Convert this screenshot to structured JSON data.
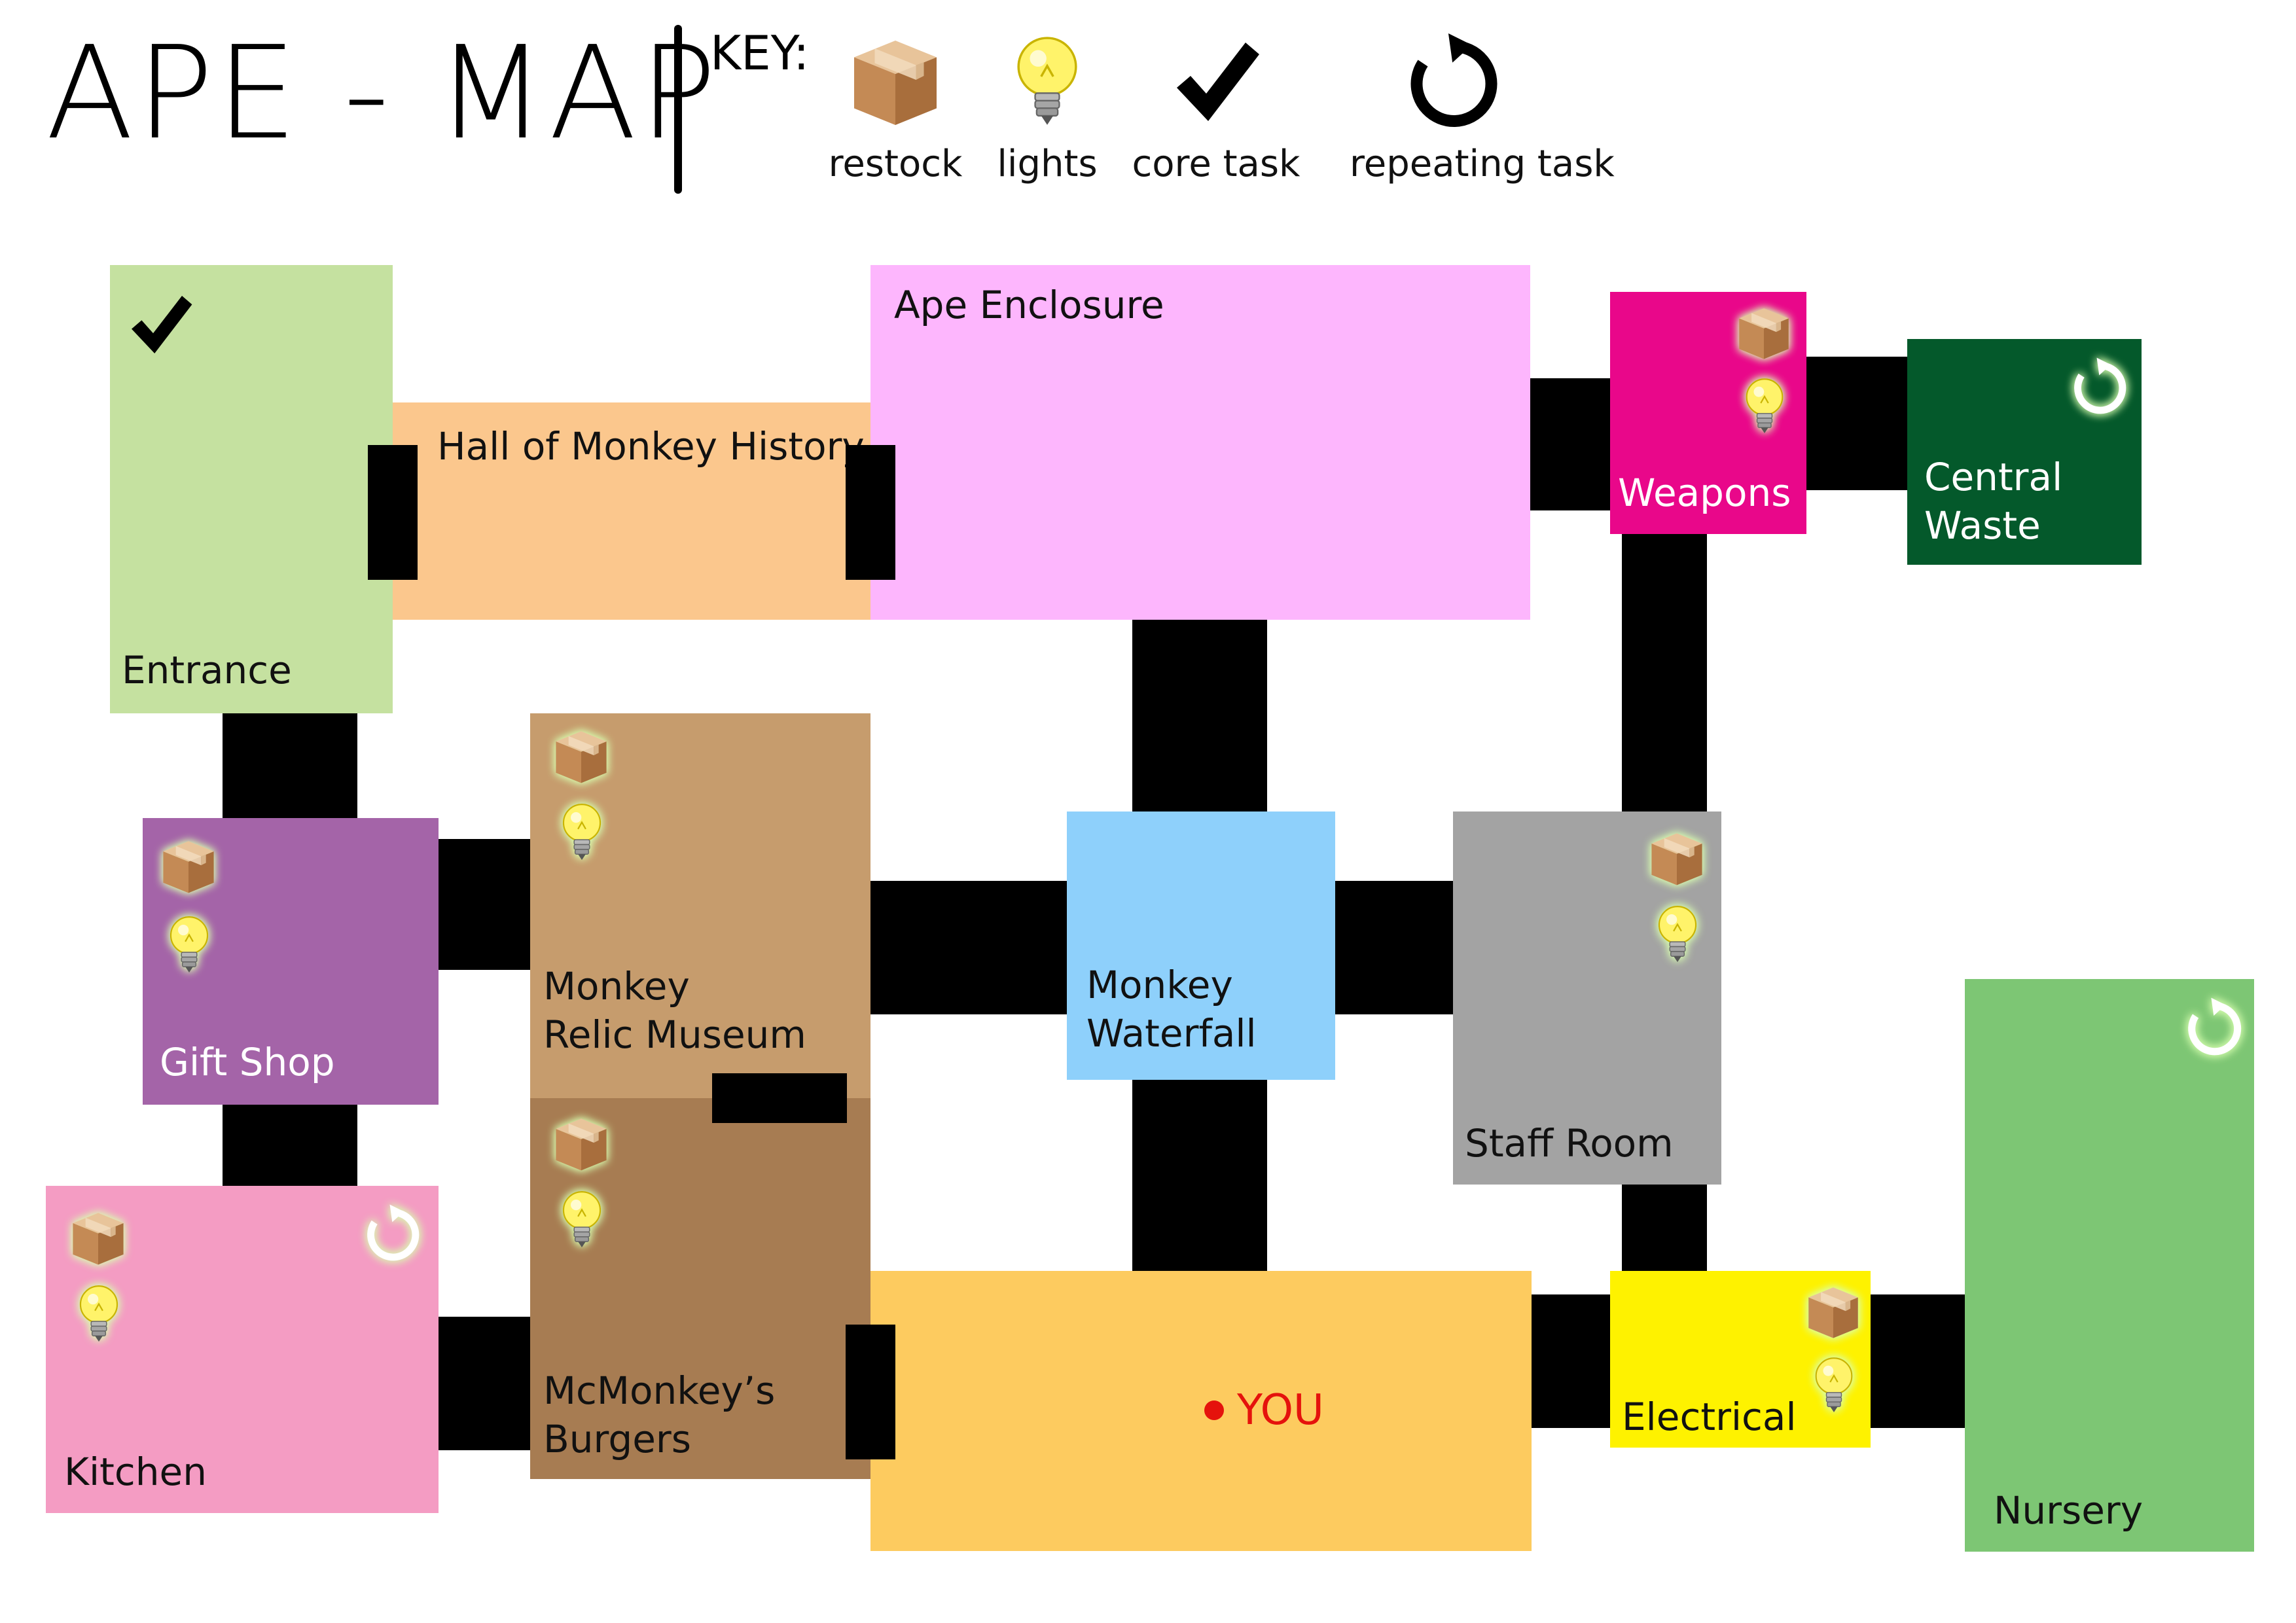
{
  "header": {
    "title": "APE - MAP",
    "key_label": "KEY:"
  },
  "legend": {
    "restock": {
      "label": "restock",
      "icon": "box-icon"
    },
    "lights": {
      "label": "lights",
      "icon": "lightbulb-icon"
    },
    "core": {
      "label": "core task",
      "icon": "checkmark-icon"
    },
    "repeating": {
      "label": "repeating task",
      "icon": "refresh-icon"
    }
  },
  "rooms": {
    "entrance": {
      "label": "Entrance",
      "color": "#c5e1a0",
      "tasks": [
        "core"
      ]
    },
    "hall": {
      "label": "Hall of Monkey History",
      "color": "#fbc78d",
      "tasks": []
    },
    "enclosure": {
      "label": "Ape Enclosure",
      "color": "#fdb6fd",
      "tasks": []
    },
    "weapons": {
      "label": "Weapons",
      "color": "#e9078a",
      "tasks": [
        "restock",
        "lights"
      ]
    },
    "central_waste": {
      "line1": "Central",
      "line2": "Waste",
      "color": "#04592b",
      "tasks": [
        "repeating"
      ]
    },
    "gift_shop": {
      "label": "Gift Shop",
      "color": "#a464a8",
      "tasks": [
        "restock",
        "lights"
      ]
    },
    "relic_museum": {
      "line1": "Monkey",
      "line2": "Relic Museum",
      "color": "#c69c6d",
      "tasks": [
        "restock",
        "lights"
      ]
    },
    "waterfall": {
      "line1": "Monkey",
      "line2": "Waterfall",
      "color": "#8ed0fb",
      "tasks": []
    },
    "staff_room": {
      "label": "Staff Room",
      "color": "#a3a3a3",
      "tasks": [
        "restock",
        "lights"
      ]
    },
    "nursery": {
      "label": "Nursery",
      "color": "#7dc674",
      "tasks": [
        "repeating"
      ]
    },
    "kitchen": {
      "label": "Kitchen",
      "color": "#f49cc3",
      "tasks": [
        "restock",
        "lights",
        "repeating"
      ]
    },
    "burgers": {
      "line1": "McMonkey’s",
      "line2": "Burgers",
      "color": "#a77c52",
      "tasks": [
        "restock",
        "lights"
      ]
    },
    "food_court": {
      "label": "",
      "color": "#fdcb5f",
      "tasks": []
    },
    "electrical": {
      "label": "Electrical",
      "color": "#fef200",
      "tasks": [
        "restock",
        "lights"
      ]
    }
  },
  "player": {
    "label": "YOU",
    "color": "#e5120c"
  }
}
